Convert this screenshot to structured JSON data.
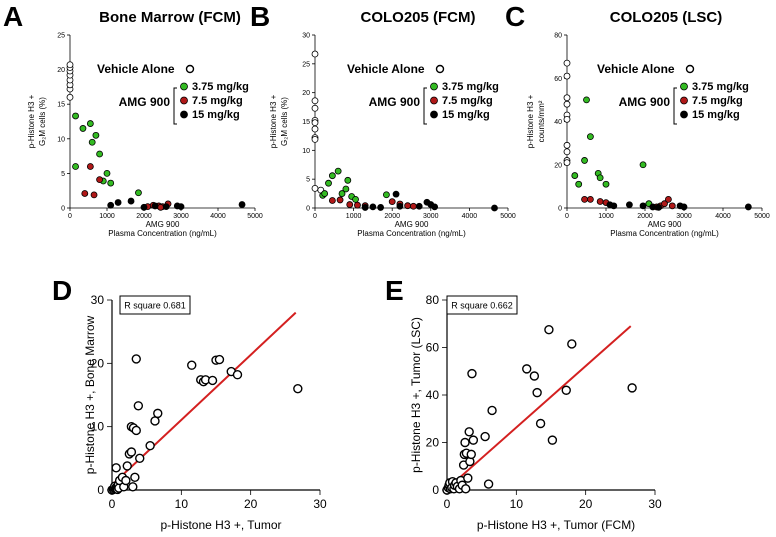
{
  "colors": {
    "vehicle": "#ffffff",
    "d375": "#33bb22",
    "d75": "#b01818",
    "d15": "#000000",
    "fit_line": "#d42020"
  },
  "legend": {
    "vehicle": "Vehicle Alone",
    "group": "AMG 900",
    "d375": "3.75 mg/kg",
    "d75": "7.5 mg/kg",
    "d15": "15 mg/kg"
  },
  "chart_data": [
    {
      "id": "A",
      "letter": "A",
      "type": "scatter",
      "title": "Bone Marrow (FCM)",
      "xlabel": "AMG 900",
      "xlabel2": "Plasma Concentration (ng/mL)",
      "ylabel": "p-Histone H3 +",
      "ylabel2": "G₂M cells (%)",
      "xlim": [
        0,
        5000
      ],
      "ylim": [
        0,
        25
      ],
      "xticks": [
        0,
        1000,
        2000,
        3000,
        4000,
        5000
      ],
      "yticks": [
        0,
        5,
        10,
        15,
        20,
        25
      ],
      "series": [
        {
          "key": "vehicle",
          "points": [
            [
              0,
              16
            ],
            [
              0,
              17.2
            ],
            [
              0,
              17.8
            ],
            [
              0,
              18.5
            ],
            [
              0,
              19.2
            ],
            [
              0,
              19.8
            ],
            [
              0,
              20.3
            ],
            [
              0,
              20.7
            ]
          ]
        },
        {
          "key": "d375",
          "points": [
            [
              150,
              6
            ],
            [
              150,
              13.3
            ],
            [
              350,
              11.5
            ],
            [
              550,
              12.2
            ],
            [
              600,
              9.5
            ],
            [
              700,
              10.5
            ],
            [
              800,
              7.8
            ],
            [
              1000,
              5
            ],
            [
              900,
              3.9
            ],
            [
              1100,
              3.6
            ],
            [
              1850,
              2.2
            ]
          ]
        },
        {
          "key": "d75",
          "points": [
            [
              400,
              2.1
            ],
            [
              550,
              6
            ],
            [
              650,
              1.9
            ],
            [
              800,
              4.1
            ],
            [
              2100,
              0.2
            ],
            [
              2250,
              0.4
            ],
            [
              2400,
              0.3
            ],
            [
              2500,
              0.2
            ],
            [
              2650,
              0.6
            ],
            [
              2450,
              0.1
            ]
          ]
        },
        {
          "key": "d15",
          "points": [
            [
              1100,
              0.4
            ],
            [
              1300,
              0.8
            ],
            [
              1650,
              1
            ],
            [
              2000,
              0.1
            ],
            [
              2300,
              0.3
            ],
            [
              2600,
              0.2
            ],
            [
              2900,
              0.3
            ],
            [
              3000,
              0.2
            ],
            [
              4650,
              0.5
            ]
          ]
        }
      ]
    },
    {
      "id": "B",
      "letter": "B",
      "type": "scatter",
      "title": "COLO205 (FCM)",
      "xlabel": "AMG 900",
      "xlabel2": "Plasma Concentration (ng/mL)",
      "ylabel": "p-Histone H3 +",
      "ylabel2": "G₂M cells (%)",
      "xlim": [
        0,
        5000
      ],
      "ylim": [
        0,
        30
      ],
      "xticks": [
        0,
        1000,
        2000,
        3000,
        4000,
        5000
      ],
      "yticks": [
        0,
        5,
        10,
        15,
        20,
        25,
        30
      ],
      "series": [
        {
          "key": "vehicle",
          "points": [
            [
              0,
              26.7
            ],
            [
              0,
              18.6
            ],
            [
              0,
              17.3
            ],
            [
              0,
              15.2
            ],
            [
              0,
              14.8
            ],
            [
              0,
              13.7
            ],
            [
              0,
              12.2
            ],
            [
              0,
              11.9
            ],
            [
              0,
              3.4
            ],
            [
              150,
              3.1
            ]
          ]
        },
        {
          "key": "d375",
          "points": [
            [
              200,
              2.2
            ],
            [
              250,
              2.5
            ],
            [
              350,
              4.3
            ],
            [
              450,
              5.6
            ],
            [
              600,
              6.4
            ],
            [
              700,
              2.5
            ],
            [
              800,
              3.3
            ],
            [
              850,
              4.8
            ],
            [
              950,
              2
            ],
            [
              1050,
              1.5
            ],
            [
              1850,
              2.3
            ]
          ]
        },
        {
          "key": "d75",
          "points": [
            [
              450,
              1.3
            ],
            [
              650,
              1.4
            ],
            [
              900,
              0.6
            ],
            [
              1100,
              0.5
            ],
            [
              1300,
              0.4
            ],
            [
              2000,
              1.1
            ],
            [
              2200,
              0.7
            ],
            [
              2400,
              0.4
            ],
            [
              2550,
              0.3
            ]
          ]
        },
        {
          "key": "d15",
          "points": [
            [
              1300,
              0.1
            ],
            [
              1500,
              0.2
            ],
            [
              1700,
              0.1
            ],
            [
              2100,
              2.4
            ],
            [
              2200,
              0.3
            ],
            [
              2700,
              0.3
            ],
            [
              2900,
              1
            ],
            [
              3000,
              0.6
            ],
            [
              3100,
              0.2
            ],
            [
              4650,
              0
            ]
          ]
        }
      ]
    },
    {
      "id": "C",
      "letter": "C",
      "type": "scatter",
      "title": "COLO205 (LSC)",
      "xlabel": "AMG 900",
      "xlabel2": "Plasma Concentration (ng/mL)",
      "ylabel": "p-Histone H3 +",
      "ylabel2": "counts/mm²",
      "xlim": [
        0,
        5000
      ],
      "ylim": [
        0,
        80
      ],
      "xticks": [
        0,
        1000,
        2000,
        3000,
        4000,
        5000
      ],
      "yticks": [
        0,
        20,
        40,
        60,
        80
      ],
      "series": [
        {
          "key": "vehicle",
          "points": [
            [
              0,
              67
            ],
            [
              0,
              61
            ],
            [
              0,
              51
            ],
            [
              0,
              48
            ],
            [
              0,
              43
            ],
            [
              0,
              41
            ],
            [
              0,
              29
            ],
            [
              0,
              26
            ],
            [
              0,
              22
            ],
            [
              0,
              21
            ]
          ]
        },
        {
          "key": "d375",
          "points": [
            [
              200,
              15
            ],
            [
              300,
              11
            ],
            [
              500,
              50
            ],
            [
              600,
              33
            ],
            [
              450,
              22
            ],
            [
              800,
              16
            ],
            [
              850,
              14
            ],
            [
              1000,
              11
            ],
            [
              1950,
              20
            ],
            [
              2100,
              2
            ]
          ]
        },
        {
          "key": "d75",
          "points": [
            [
              450,
              4
            ],
            [
              600,
              4
            ],
            [
              850,
              3
            ],
            [
              1000,
              2.5
            ],
            [
              2400,
              1
            ],
            [
              2500,
              2
            ],
            [
              2600,
              4
            ],
            [
              2700,
              1
            ],
            [
              2300,
              0.5
            ]
          ]
        },
        {
          "key": "d15",
          "points": [
            [
              1100,
              1.5
            ],
            [
              1200,
              1
            ],
            [
              1600,
              1.5
            ],
            [
              1950,
              1
            ],
            [
              2200,
              0.5
            ],
            [
              2350,
              0.3
            ],
            [
              2900,
              1
            ],
            [
              3000,
              0.5
            ],
            [
              4650,
              0.5
            ]
          ]
        }
      ]
    },
    {
      "id": "D",
      "letter": "D",
      "type": "scatter",
      "title": "",
      "xlabel": "p-Histone H3 +, Tumor",
      "ylabel": "p-Histone H3 +, Bone Marrow",
      "xlim": [
        0,
        30
      ],
      "ylim": [
        0,
        30
      ],
      "xticks": [
        0,
        10,
        20,
        30
      ],
      "yticks": [
        0,
        10,
        20,
        30
      ],
      "annotation": "R square 0.681",
      "fit_line": [
        [
          0,
          0.8
        ],
        [
          26.5,
          28
        ]
      ],
      "points": [
        [
          0,
          0
        ],
        [
          0.2,
          0.1
        ],
        [
          0.3,
          0.3
        ],
        [
          0.5,
          0.2
        ],
        [
          0.4,
          0.6
        ],
        [
          0.6,
          0.4
        ],
        [
          0.7,
          0.2
        ],
        [
          0.8,
          0.1
        ],
        [
          0.9,
          0.8
        ],
        [
          1,
          0.3
        ],
        [
          1.1,
          1.5
        ],
        [
          0.6,
          3.5
        ],
        [
          1.5,
          2
        ],
        [
          1.7,
          0.5
        ],
        [
          2,
          1.5
        ],
        [
          2.2,
          3.8
        ],
        [
          2.5,
          5.7
        ],
        [
          2.8,
          6
        ],
        [
          2.8,
          10
        ],
        [
          3.1,
          9.8
        ],
        [
          3,
          0.5
        ],
        [
          3.3,
          2
        ],
        [
          3.5,
          9.4
        ],
        [
          3.5,
          20.7
        ],
        [
          3.8,
          13.3
        ],
        [
          4,
          5
        ],
        [
          5.5,
          7
        ],
        [
          6.2,
          10.9
        ],
        [
          6.6,
          12.1
        ],
        [
          11.5,
          19.7
        ],
        [
          12.8,
          17.4
        ],
        [
          13.2,
          17.1
        ],
        [
          13.5,
          17.4
        ],
        [
          14.5,
          17.3
        ],
        [
          15,
          20.5
        ],
        [
          15.5,
          20.6
        ],
        [
          17.2,
          18.7
        ],
        [
          18.1,
          18.2
        ],
        [
          26.8,
          16
        ]
      ]
    },
    {
      "id": "E",
      "letter": "E",
      "type": "scatter",
      "title": "",
      "xlabel": "p-Histone H3 +, Tumor (FCM)",
      "ylabel": "p-Histone H3 +, Tumor (LSC)",
      "xlim": [
        0,
        30
      ],
      "ylim": [
        0,
        80
      ],
      "xticks": [
        0,
        10,
        20,
        30
      ],
      "yticks": [
        0,
        20,
        40,
        60,
        80
      ],
      "annotation": "R square 0.662",
      "fit_line": [
        [
          0,
          0.5
        ],
        [
          26.5,
          69
        ]
      ],
      "points": [
        [
          0,
          0
        ],
        [
          0.2,
          1
        ],
        [
          0.3,
          2
        ],
        [
          0.5,
          0.5
        ],
        [
          0.4,
          3
        ],
        [
          0.7,
          1
        ],
        [
          0.8,
          3.5
        ],
        [
          1,
          0.5
        ],
        [
          1.1,
          2
        ],
        [
          1.3,
          3
        ],
        [
          1.5,
          1.5
        ],
        [
          1.8,
          0.5
        ],
        [
          2,
          4
        ],
        [
          2.2,
          2
        ],
        [
          2.4,
          10.5
        ],
        [
          2.5,
          15
        ],
        [
          2.6,
          20
        ],
        [
          2.7,
          0.5
        ],
        [
          2.8,
          15.5
        ],
        [
          3,
          5
        ],
        [
          3.2,
          24.5
        ],
        [
          3.3,
          12
        ],
        [
          3.5,
          15
        ],
        [
          3.6,
          49
        ],
        [
          3.8,
          21
        ],
        [
          5.5,
          22.5
        ],
        [
          6,
          2.5
        ],
        [
          6.5,
          33.5
        ],
        [
          11.5,
          51
        ],
        [
          12.6,
          48
        ],
        [
          13,
          41
        ],
        [
          13.5,
          28
        ],
        [
          14.7,
          67.5
        ],
        [
          15.2,
          21
        ],
        [
          17.2,
          42
        ],
        [
          18,
          61.5
        ],
        [
          26.7,
          43
        ]
      ]
    }
  ]
}
